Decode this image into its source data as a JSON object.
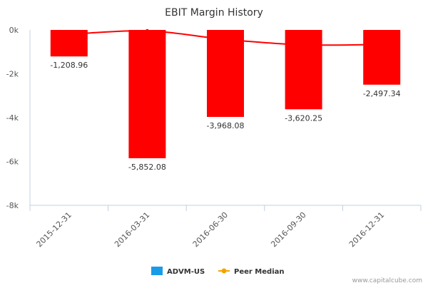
{
  "chart_data": {
    "type": "bar",
    "title": "EBIT Margin History",
    "categories": [
      "2015-12-31",
      "2016-03-31",
      "2016-06-30",
      "2016-09-30",
      "2016-12-31"
    ],
    "series": [
      {
        "name": "ADVM-US",
        "kind": "bar",
        "values": [
          -1208.96,
          -5852.08,
          -3968.08,
          -3620.25,
          -2497.34
        ],
        "labels": [
          "-1,208.96",
          "-5,852.08",
          "-3,968.08",
          "-3,620.25",
          "-2,497.34"
        ],
        "color": "#ff0000"
      },
      {
        "name": "Peer Median",
        "kind": "line",
        "values": [
          -200,
          -40,
          -430,
          -680,
          -660
        ],
        "color": "#ff0000"
      }
    ],
    "yticks": [
      0,
      -2000,
      -4000,
      -6000,
      -8000
    ],
    "ytick_labels": [
      "0k",
      "-2k",
      "-4k",
      "-6k",
      "-8k"
    ],
    "ylim": [
      -8000,
      0
    ],
    "xlabel": "",
    "ylabel": "",
    "legend": [
      {
        "label": "ADVM-US",
        "color": "#1a9be8",
        "marker": "square"
      },
      {
        "label": "Peer Median",
        "color": "#f5a200",
        "marker": "line-dot"
      }
    ],
    "legend_position": "bottom-center",
    "grid": false
  },
  "footer": {
    "source": "www.capitalcube.com"
  }
}
